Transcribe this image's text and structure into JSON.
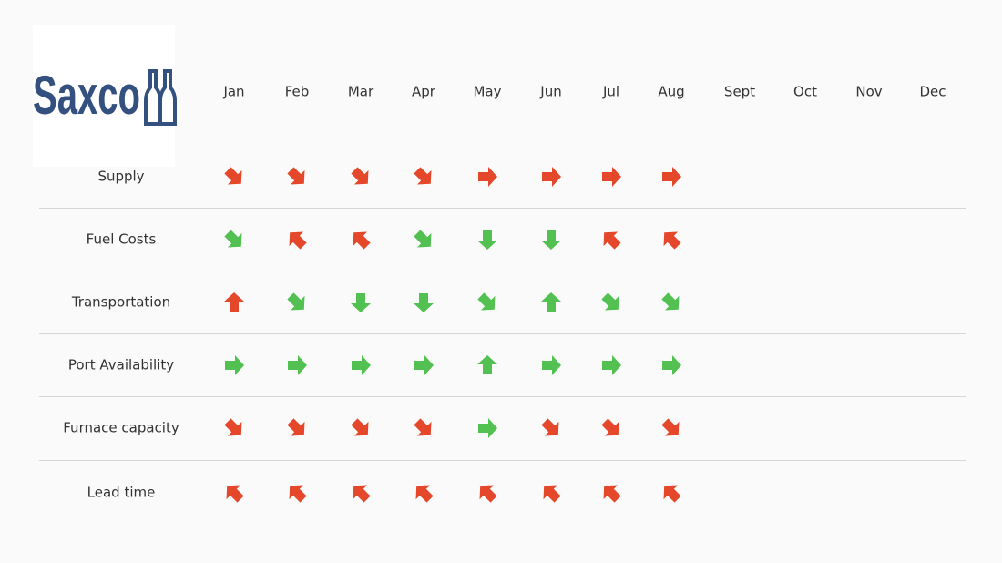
{
  "logo": "Saxco",
  "months": [
    "Jan",
    "Feb",
    "Mar",
    "Apr",
    "May",
    "Jun",
    "Jul",
    "Aug",
    "Sept",
    "Oct",
    "Nov",
    "Dec"
  ],
  "rows": [
    {
      "label": "Supply",
      "cells": [
        {
          "angle": 45,
          "color": "#e5472a"
        },
        {
          "angle": 45,
          "color": "#e5472a"
        },
        {
          "angle": 45,
          "color": "#e5472a"
        },
        {
          "angle": 45,
          "color": "#e5472a"
        },
        {
          "angle": 0,
          "color": "#e5472a"
        },
        {
          "angle": 0,
          "color": "#e5472a"
        },
        {
          "angle": 0,
          "color": "#e5472a"
        },
        {
          "angle": 0,
          "color": "#e5472a"
        }
      ]
    },
    {
      "label": "Fuel Costs",
      "cells": [
        {
          "angle": 45,
          "color": "#52c152"
        },
        {
          "angle": 225,
          "color": "#e5472a"
        },
        {
          "angle": 225,
          "color": "#e5472a"
        },
        {
          "angle": 45,
          "color": "#52c152"
        },
        {
          "angle": 90,
          "color": "#52c152"
        },
        {
          "angle": 90,
          "color": "#52c152"
        },
        {
          "angle": 225,
          "color": "#e5472a"
        },
        {
          "angle": 225,
          "color": "#e5472a"
        }
      ]
    },
    {
      "label": "Transportation",
      "cells": [
        {
          "angle": 270,
          "color": "#e5472a"
        },
        {
          "angle": 45,
          "color": "#52c152"
        },
        {
          "angle": 90,
          "color": "#52c152"
        },
        {
          "angle": 90,
          "color": "#52c152"
        },
        {
          "angle": 45,
          "color": "#52c152"
        },
        {
          "angle": 270,
          "color": "#52c152"
        },
        {
          "angle": 45,
          "color": "#52c152"
        },
        {
          "angle": 45,
          "color": "#52c152"
        }
      ]
    },
    {
      "label": "Port Availability",
      "cells": [
        {
          "angle": 0,
          "color": "#52c152"
        },
        {
          "angle": 0,
          "color": "#52c152"
        },
        {
          "angle": 0,
          "color": "#52c152"
        },
        {
          "angle": 0,
          "color": "#52c152"
        },
        {
          "angle": 270,
          "color": "#52c152"
        },
        {
          "angle": 0,
          "color": "#52c152"
        },
        {
          "angle": 0,
          "color": "#52c152"
        },
        {
          "angle": 0,
          "color": "#52c152"
        }
      ]
    },
    {
      "label": "Furnace capacity",
      "cells": [
        {
          "angle": 45,
          "color": "#e5472a"
        },
        {
          "angle": 45,
          "color": "#e5472a"
        },
        {
          "angle": 45,
          "color": "#e5472a"
        },
        {
          "angle": 45,
          "color": "#e5472a"
        },
        {
          "angle": 0,
          "color": "#52c152"
        },
        {
          "angle": 45,
          "color": "#e5472a"
        },
        {
          "angle": 45,
          "color": "#e5472a"
        },
        {
          "angle": 45,
          "color": "#e5472a"
        }
      ]
    },
    {
      "label": "Lead time",
      "cells": [
        {
          "angle": 225,
          "color": "#e5472a"
        },
        {
          "angle": 225,
          "color": "#e5472a"
        },
        {
          "angle": 225,
          "color": "#e5472a"
        },
        {
          "angle": 225,
          "color": "#e5472a"
        },
        {
          "angle": 225,
          "color": "#e5472a"
        },
        {
          "angle": 225,
          "color": "#e5472a"
        },
        {
          "angle": 225,
          "color": "#e5472a"
        },
        {
          "angle": 225,
          "color": "#e5472a"
        }
      ]
    }
  ]
}
